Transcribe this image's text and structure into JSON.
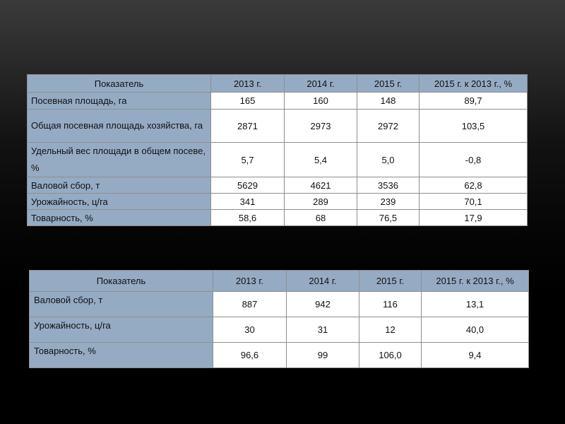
{
  "table1": {
    "headers": [
      "Показатель",
      "2013 г.",
      "2014 г.",
      "2015 г.",
      "2015 г. к 2013 г., %"
    ],
    "rows": [
      {
        "label": "Посевная площадь, га",
        "values": [
          "165",
          "160",
          "148",
          "89,7"
        ]
      },
      {
        "label": "Общая посевная площадь хозяйства, га",
        "values": [
          "2871",
          "2973",
          "2972",
          "103,5"
        ]
      },
      {
        "label": "Удельный вес площади в общем посеве, %",
        "values": [
          "5,7",
          "5,4",
          "5,0",
          "-0,8"
        ]
      },
      {
        "label": "Валовой сбор, т",
        "values": [
          "5629",
          "4621",
          "3536",
          "62,8"
        ]
      },
      {
        "label": "Урожайность, ц/га",
        "values": [
          "341",
          "289",
          "239",
          "70,1"
        ]
      },
      {
        "label": "Товарность, %",
        "values": [
          "58,6",
          "68",
          "76,5",
          "17,9"
        ]
      }
    ]
  },
  "table2": {
    "headers": [
      "Показатель",
      "2013 г.",
      "2014 г.",
      "2015 г.",
      "2015 г. к 2013 г., %"
    ],
    "rows": [
      {
        "label": "Валовой сбор, т",
        "values": [
          "887",
          "942",
          "116",
          "13,1"
        ]
      },
      {
        "label": "Урожайность, ц/га",
        "values": [
          "30",
          "31",
          "12",
          "40,0"
        ]
      },
      {
        "label": "Товарность, %",
        "values": [
          "96,6",
          "99",
          "106,0",
          "9,4"
        ]
      }
    ]
  }
}
